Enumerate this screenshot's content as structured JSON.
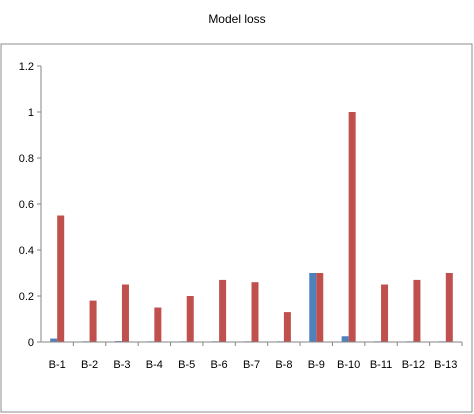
{
  "chart_data": {
    "type": "bar",
    "title": "Model loss",
    "xlabel": "",
    "ylabel": "",
    "ylim": [
      0,
      1.2
    ],
    "yticks": [
      "0",
      "0.2",
      "0.4",
      "0.6",
      "0.8",
      "1",
      "1.2"
    ],
    "grid": false,
    "legend": "none",
    "categories": [
      "B-1",
      "B-2",
      "B-3",
      "B-4",
      "B-5",
      "B-6",
      "B-7",
      "B-8",
      "B-9",
      "B-10",
      "B-11",
      "B-12",
      "B-13"
    ],
    "series": [
      {
        "color": "#4f81bd",
        "values": [
          0.015,
          0.003,
          0.004,
          0.003,
          0.003,
          0.003,
          0.003,
          0.003,
          0.3,
          0.025,
          0.003,
          0.003,
          0.003
        ]
      },
      {
        "color": "#c0504d",
        "values": [
          0.55,
          0.18,
          0.25,
          0.15,
          0.2,
          0.27,
          0.26,
          0.13,
          0.3,
          1.0,
          0.25,
          0.27,
          0.3
        ]
      }
    ]
  }
}
